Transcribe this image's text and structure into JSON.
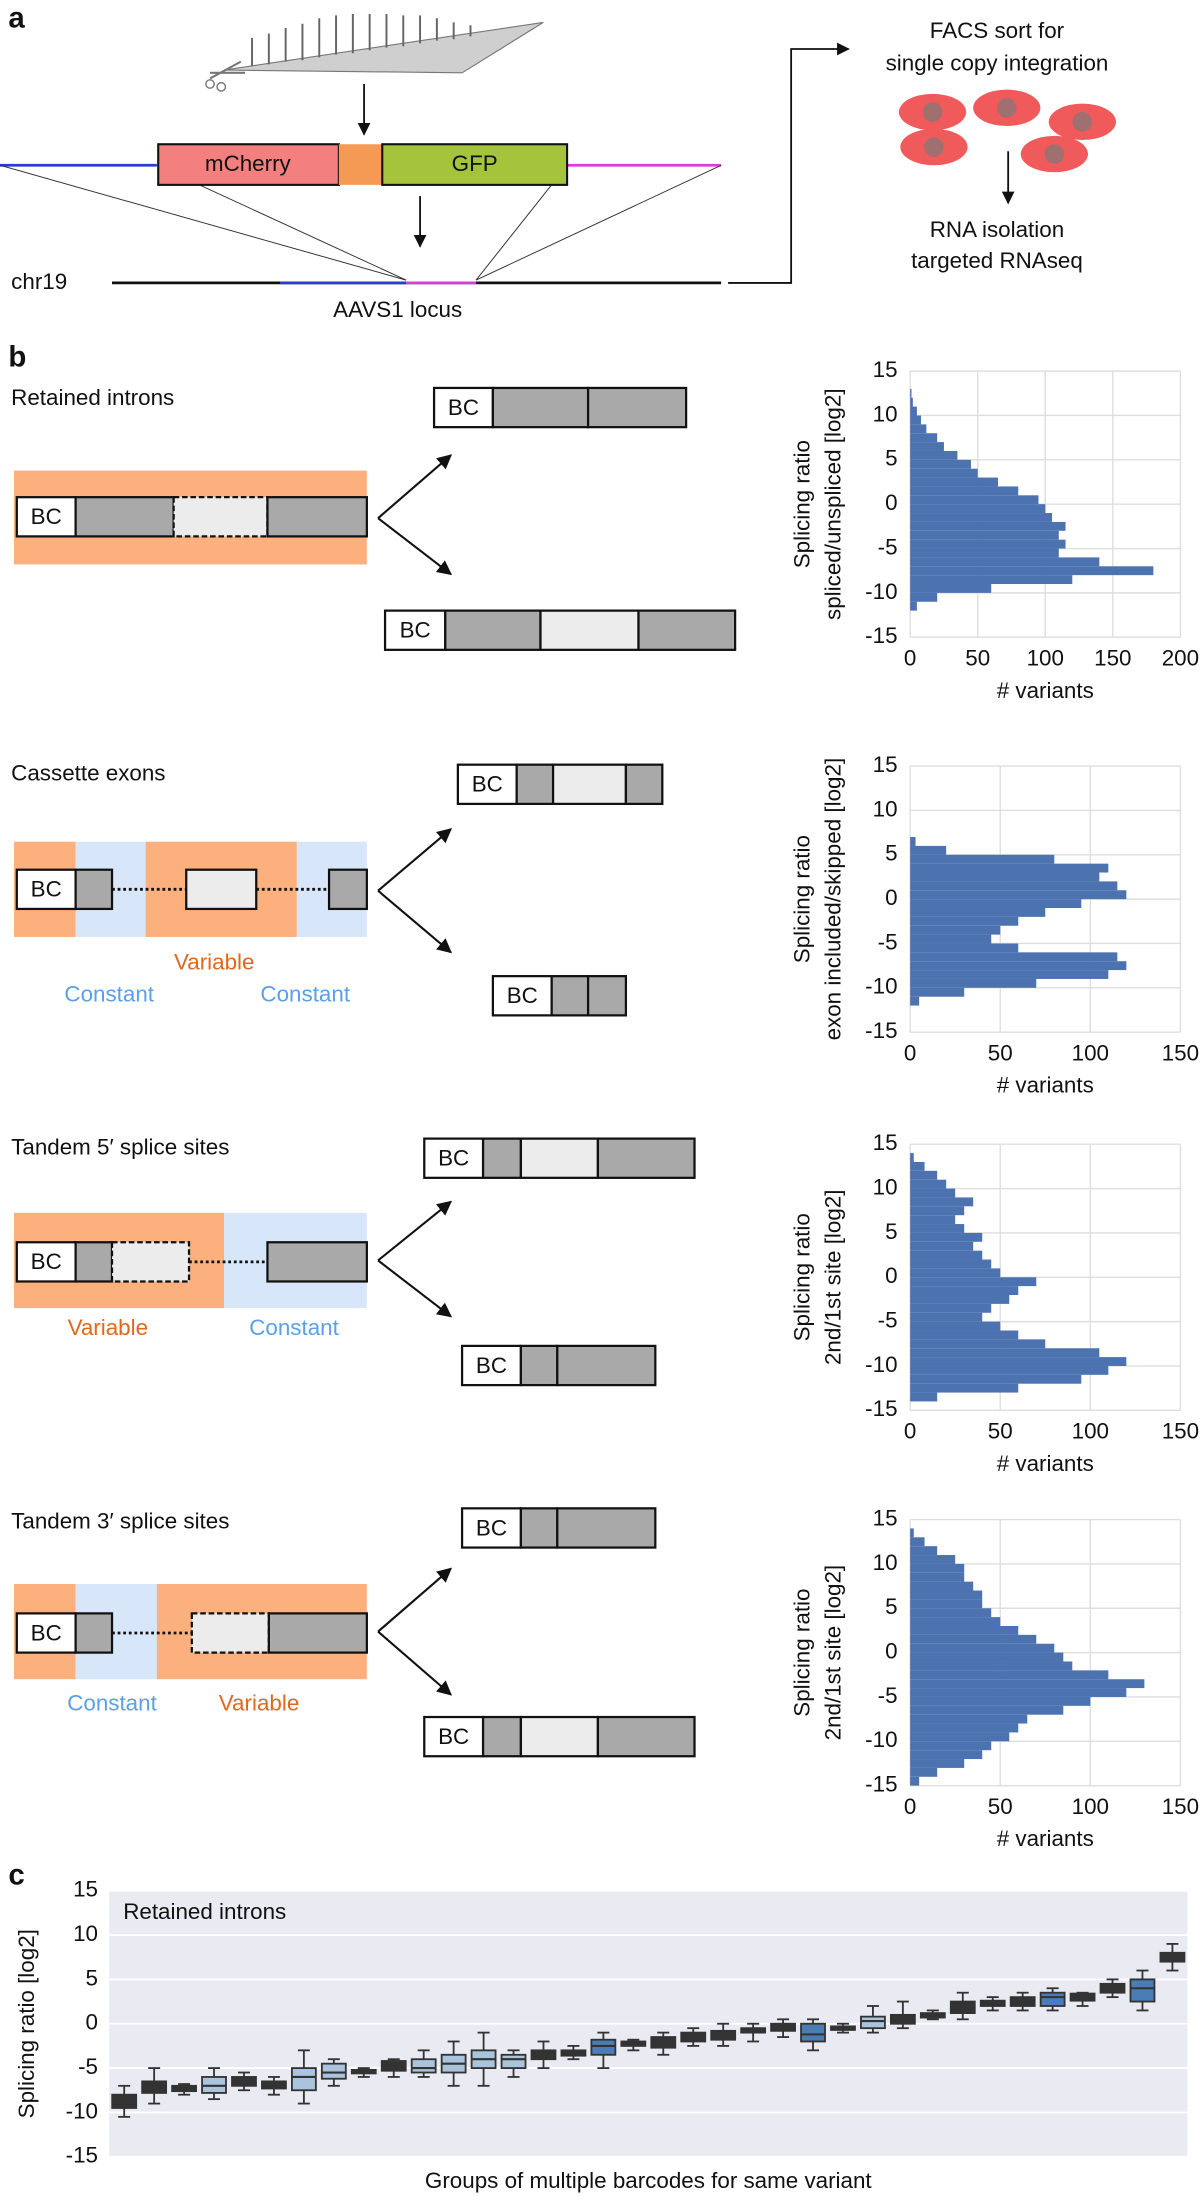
{
  "panel_a": {
    "label": "a",
    "insert_labels": [
      "mCherry",
      "GFP"
    ],
    "chromosome": "chr19",
    "locus": "AAVS1 locus",
    "sort_text": [
      "FACS sort for",
      "single copy integration"
    ],
    "rna_text": [
      "RNA isolation",
      "targeted RNAseq"
    ]
  },
  "panel_b": {
    "label": "b",
    "barcode": "BC",
    "rows": [
      {
        "title": "Retained introns",
        "regions": []
      },
      {
        "title": "Cassette exons",
        "regions": [
          "Variable",
          "Constant",
          "Constant"
        ]
      },
      {
        "title": "Tandem 5′ splice sites",
        "regions": [
          "Variable",
          "Constant"
        ]
      },
      {
        "title": "Tandem 3′ splice sites",
        "regions": [
          "Constant",
          "Variable"
        ]
      }
    ]
  },
  "panel_c": {
    "label": "c"
  },
  "chart_data": [
    {
      "type": "histogram",
      "orientation": "horizontal",
      "bins": [
        -15,
        -14,
        -13,
        -12,
        -11,
        -10,
        -9,
        -8,
        -7,
        -6,
        -5,
        -4,
        -3,
        -2,
        -1,
        0,
        1,
        2,
        3,
        4,
        5,
        6,
        7,
        8,
        9,
        10,
        11,
        12,
        13,
        14,
        15
      ],
      "values": [
        0,
        0,
        0,
        5,
        20,
        60,
        120,
        180,
        140,
        110,
        115,
        110,
        115,
        105,
        100,
        95,
        80,
        65,
        50,
        45,
        35,
        25,
        20,
        12,
        8,
        5,
        2,
        1,
        0,
        0
      ],
      "color": "#4c72b0",
      "xlim": [
        0,
        200
      ],
      "xticks": [
        0,
        50,
        100,
        150,
        200
      ],
      "ylim": [
        -15,
        15
      ],
      "yticks": [
        -15,
        -10,
        -5,
        0,
        5,
        10,
        15
      ],
      "xlabel": "# variants",
      "ylabel": [
        "Splicing ratio",
        "spliced/unspliced [log2]"
      ],
      "grid": true
    },
    {
      "type": "histogram",
      "orientation": "horizontal",
      "bins": [
        -15,
        -14,
        -13,
        -12,
        -11,
        -10,
        -9,
        -8,
        -7,
        -6,
        -5,
        -4,
        -3,
        -2,
        -1,
        0,
        1,
        2,
        3,
        4,
        5,
        6,
        7,
        8,
        9,
        10,
        11,
        12,
        13,
        14,
        15
      ],
      "values": [
        0,
        0,
        0,
        5,
        30,
        70,
        110,
        120,
        115,
        60,
        45,
        50,
        60,
        75,
        95,
        120,
        115,
        105,
        110,
        80,
        20,
        3,
        0,
        0,
        0,
        0,
        0,
        0,
        0,
        0
      ],
      "color": "#4c72b0",
      "xlim": [
        0,
        150
      ],
      "xticks": [
        0,
        50,
        100,
        150
      ],
      "ylim": [
        -15,
        15
      ],
      "yticks": [
        -15,
        -10,
        -5,
        0,
        5,
        10,
        15
      ],
      "xlabel": "# variants",
      "ylabel": [
        "Splicing ratio",
        "exon included/skipped [log2]"
      ],
      "grid": true
    },
    {
      "type": "histogram",
      "orientation": "horizontal",
      "bins": [
        -15,
        -14,
        -13,
        -12,
        -11,
        -10,
        -9,
        -8,
        -7,
        -6,
        -5,
        -4,
        -3,
        -2,
        -1,
        0,
        1,
        2,
        3,
        4,
        5,
        6,
        7,
        8,
        9,
        10,
        11,
        12,
        13,
        14,
        15
      ],
      "values": [
        0,
        15,
        60,
        95,
        110,
        120,
        105,
        75,
        60,
        50,
        40,
        45,
        55,
        60,
        70,
        50,
        45,
        40,
        35,
        40,
        30,
        25,
        30,
        35,
        25,
        20,
        15,
        8,
        2,
        0
      ],
      "color": "#4c72b0",
      "xlim": [
        0,
        150
      ],
      "xticks": [
        0,
        50,
        100,
        150
      ],
      "ylim": [
        -15,
        15
      ],
      "yticks": [
        -15,
        -10,
        -5,
        0,
        5,
        10,
        15
      ],
      "xlabel": "# variants",
      "ylabel": [
        "Splicing ratio",
        "2nd/1st site [log2]"
      ],
      "grid": true
    },
    {
      "type": "histogram",
      "orientation": "horizontal",
      "bins": [
        -15,
        -14,
        -13,
        -12,
        -11,
        -10,
        -9,
        -8,
        -7,
        -6,
        -5,
        -4,
        -3,
        -2,
        -1,
        0,
        1,
        2,
        3,
        4,
        5,
        6,
        7,
        8,
        9,
        10,
        11,
        12,
        13,
        14,
        15
      ],
      "values": [
        5,
        15,
        30,
        40,
        45,
        55,
        60,
        65,
        85,
        100,
        120,
        130,
        110,
        90,
        85,
        80,
        70,
        60,
        50,
        45,
        40,
        40,
        35,
        30,
        30,
        25,
        15,
        8,
        2,
        0
      ],
      "color": "#4c72b0",
      "xlim": [
        0,
        150
      ],
      "xticks": [
        0,
        50,
        100,
        150
      ],
      "ylim": [
        -15,
        15
      ],
      "yticks": [
        -15,
        -10,
        -5,
        0,
        5,
        10,
        15
      ],
      "xlabel": "# variants",
      "ylabel": [
        "Splicing ratio",
        "2nd/1st site [log2]"
      ],
      "grid": true
    },
    {
      "type": "box",
      "annotation": "Retained introns",
      "ylabel": "Splicing ratio [log2]",
      "xlabel": "Groups of multiple barcodes for same variant",
      "ylim": [
        -15,
        15
      ],
      "yticks": [
        -15,
        -10,
        -5,
        0,
        5,
        10,
        15
      ],
      "grid": true,
      "background": "#eaeaf2",
      "whislo": [
        -10.5,
        -9,
        -8,
        -8.5,
        -7.5,
        -8,
        -9,
        -7,
        -6,
        -6,
        -6,
        -7,
        -7,
        -6,
        -5,
        -4,
        -5,
        -3,
        -3.5,
        -2.5,
        -2.5,
        -2,
        -1.5,
        -3,
        -1,
        -1,
        -0.5,
        0.5,
        0.5,
        1.5,
        1.5,
        1.5,
        2,
        3,
        1.5,
        6
      ],
      "q1": [
        -9.5,
        -7.8,
        -7.6,
        -7.8,
        -7,
        -7.3,
        -7.5,
        -6.2,
        -5.6,
        -5.3,
        -5.5,
        -5.5,
        -5,
        -5,
        -4,
        -3.6,
        -3.5,
        -2.5,
        -2.7,
        -2,
        -1.8,
        -1,
        -0.8,
        -2,
        -0.7,
        -0.5,
        0,
        0.7,
        1.2,
        2,
        2,
        2,
        2.6,
        3.5,
        2.5,
        7
      ],
      "med": [
        -9,
        -7,
        -7.3,
        -7,
        -6.5,
        -7,
        -6,
        -5.5,
        -5.4,
        -4.8,
        -5,
        -4.5,
        -4,
        -4,
        -3.5,
        -3.5,
        -2.5,
        -2.2,
        -2,
        -1.5,
        -1.3,
        -0.7,
        -0.3,
        -1.2,
        -0.5,
        0.3,
        0.5,
        1,
        2,
        2.2,
        2.5,
        3,
        3,
        4,
        4,
        7.5
      ],
      "q3": [
        -8,
        -6.5,
        -7,
        -6,
        -6,
        -6.5,
        -5,
        -4.5,
        -5.2,
        -4.2,
        -4,
        -3.5,
        -3,
        -3.5,
        -3,
        -3,
        -1.8,
        -2,
        -1.5,
        -1,
        -0.8,
        -0.5,
        0,
        0,
        -0.3,
        0.8,
        1,
        1.2,
        2.5,
        2.6,
        3,
        3.5,
        3.4,
        4.5,
        5,
        8
      ],
      "whishi": [
        -7,
        -5,
        -6.8,
        -5,
        -5.5,
        -6,
        -3,
        -4,
        -5,
        -4,
        -3,
        -2,
        -1,
        -3,
        -2,
        -2.5,
        -1,
        -1.8,
        -1,
        -0.5,
        0,
        0,
        0.5,
        0.5,
        0,
        2,
        2.5,
        1.5,
        3.5,
        3,
        3.5,
        4,
        3.5,
        5,
        6,
        9
      ],
      "colors": [
        "#333333",
        "#333333",
        "#333333",
        "#a9c4dc",
        "#333333",
        "#333333",
        "#a9c4dc",
        "#a9c4dc",
        "#333333",
        "#333333",
        "#a9c4dc",
        "#a9c4dc",
        "#a9c4dc",
        "#a9c4dc",
        "#333333",
        "#333333",
        "#4a7db5",
        "#333333",
        "#333333",
        "#333333",
        "#333333",
        "#333333",
        "#333333",
        "#4a7db5",
        "#333333",
        "#a9c4dc",
        "#333333",
        "#333333",
        "#333333",
        "#333333",
        "#333333",
        "#4a7db5",
        "#333333",
        "#333333",
        "#4a7db5",
        "#333333"
      ]
    }
  ]
}
